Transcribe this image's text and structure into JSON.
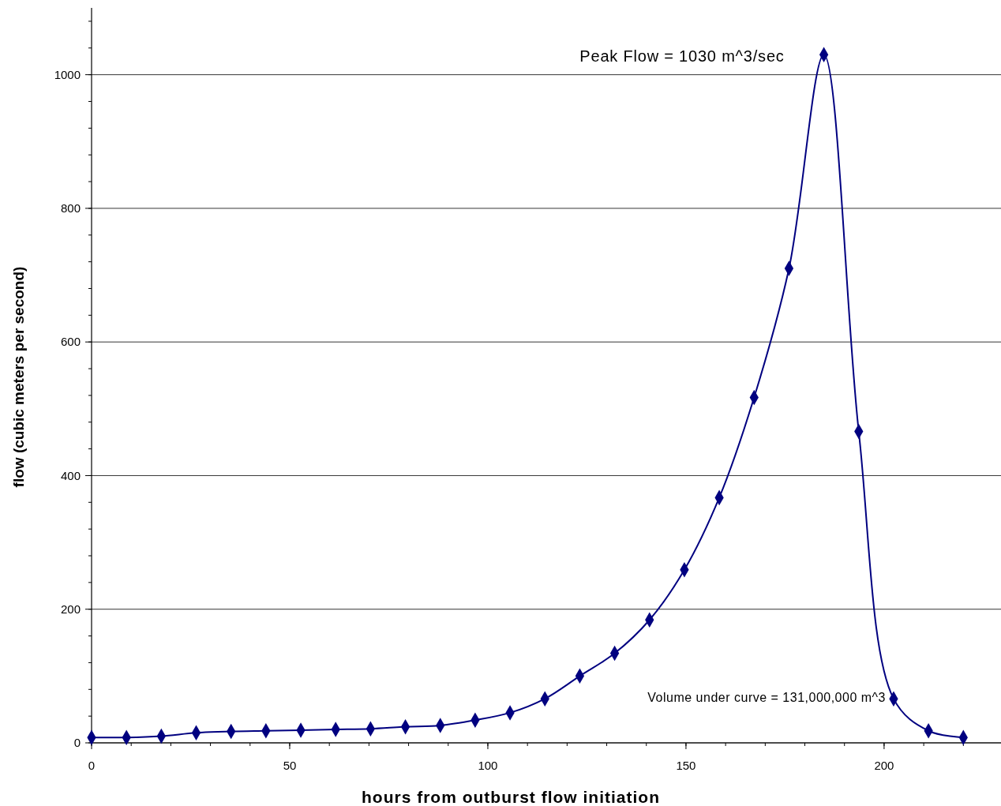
{
  "chart_data": {
    "type": "line",
    "xlabel": "hours from outburst flow initiation",
    "ylabel": "flow (cubic meters per second)",
    "x": [
      0,
      8.8,
      17.6,
      26.4,
      35.2,
      44,
      52.8,
      61.6,
      70.4,
      79.2,
      88,
      96.8,
      105.6,
      114.4,
      123.2,
      132,
      140.8,
      149.6,
      158.4,
      167.2,
      176,
      184.8,
      193.6,
      202.4,
      211.2,
      220
    ],
    "series": [
      {
        "color": "#000080",
        "values": [
          8,
          8,
          10,
          15,
          17,
          18,
          19,
          20,
          21,
          24,
          26,
          34,
          45,
          66,
          100,
          134,
          184,
          259,
          367,
          517,
          710,
          1030,
          466,
          66,
          18,
          8
        ]
      }
    ],
    "xlim": [
      0,
      229.5
    ],
    "xticks": [
      0,
      50,
      100,
      150,
      200
    ],
    "ylim": [
      0,
      1100
    ],
    "yticks": [
      0,
      200,
      400,
      600,
      800,
      1000
    ],
    "grid": "y",
    "marker": "diamond",
    "line_style": "solid",
    "annotations": [
      {
        "text": "Peak Flow = 1030 m^3/sec",
        "x": 184.8,
        "y": 1030
      },
      "Volume under curve = 131,000,000 m^3"
    ]
  }
}
